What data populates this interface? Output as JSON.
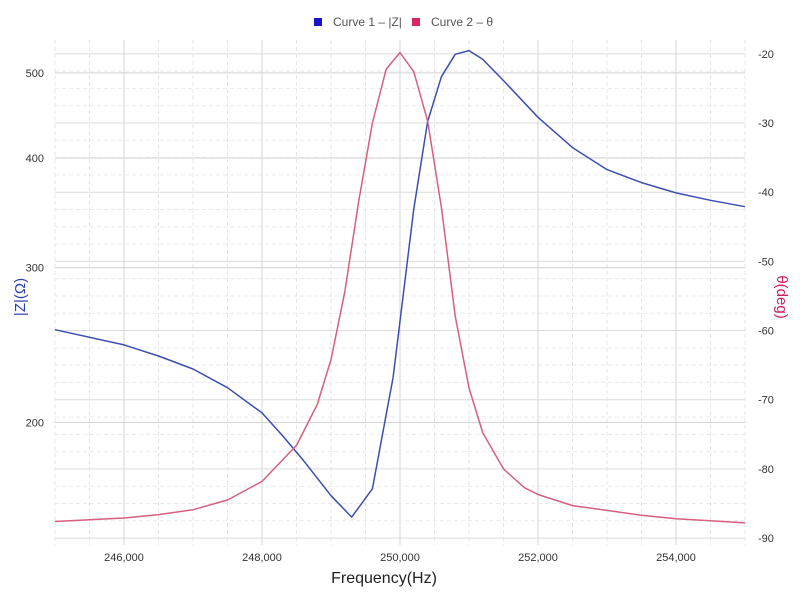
{
  "chart_data": {
    "type": "line",
    "xlabel": "Frequency(Hz)",
    "ylabel_left": "|Z|(Ω)",
    "ylabel_right": "θ(deg)",
    "xlim": [
      245000,
      255000
    ],
    "ylim_left": [
      145,
      545
    ],
    "ylim_right": [
      -91,
      -18
    ],
    "y_left_scale": "log",
    "grid": true,
    "legend_position": "top-center",
    "x_ticks": [
      246000,
      248000,
      250000,
      252000,
      254000
    ],
    "x_tick_labels": [
      "246,000",
      "248,000",
      "250,000",
      "252,000",
      "254,000"
    ],
    "y_left_ticks": [
      200,
      300,
      400,
      500
    ],
    "y_left_tick_labels": [
      "200",
      "300",
      "400",
      "500"
    ],
    "y_right_ticks": [
      -20,
      -30,
      -40,
      -50,
      -60,
      -70,
      -80,
      -90
    ],
    "y_right_tick_labels": [
      "-20",
      "-30",
      "-40",
      "-50",
      "-60",
      "-70",
      "-80",
      "-90"
    ],
    "series": [
      {
        "name": "Curve 1 – |Z|",
        "axis": "left",
        "color": "#3b4fb0",
        "legend_color": "#1a14c8",
        "x": [
          245000,
          246000,
          246500,
          247000,
          247500,
          248000,
          248300,
          248600,
          249000,
          249300,
          249600,
          249900,
          250200,
          250400,
          250600,
          250800,
          251000,
          251200,
          251500,
          252000,
          252500,
          253000,
          253500,
          254000,
          254500,
          255000
        ],
        "y": [
          255,
          245,
          238,
          230,
          219,
          205,
          193,
          181,
          165,
          156,
          168,
          225,
          350,
          440,
          495,
          525,
          530,
          518,
          490,
          445,
          411,
          388,
          375,
          365,
          358,
          352
        ]
      },
      {
        "name": "Curve 2 – θ",
        "axis": "right",
        "color": "#d65f7e",
        "legend_color": "#e0245e",
        "x": [
          245000,
          246000,
          246500,
          247000,
          247500,
          248000,
          248500,
          248800,
          249000,
          249200,
          249400,
          249600,
          249800,
          250000,
          250200,
          250400,
          250600,
          250800,
          251000,
          251200,
          251500,
          251800,
          252000,
          252500,
          253000,
          253500,
          254000,
          254500,
          255000
        ],
        "y": [
          -87.6,
          -87.1,
          -86.6,
          -85.9,
          -84.5,
          -81.8,
          -76.6,
          -70.7,
          -64.2,
          -54.4,
          -41.4,
          -30.0,
          -22.2,
          -19.8,
          -22.6,
          -29.7,
          -42.2,
          -57.9,
          -68.3,
          -74.8,
          -80.0,
          -82.7,
          -83.7,
          -85.3,
          -86.0,
          -86.7,
          -87.2,
          -87.5,
          -87.8
        ]
      }
    ]
  }
}
